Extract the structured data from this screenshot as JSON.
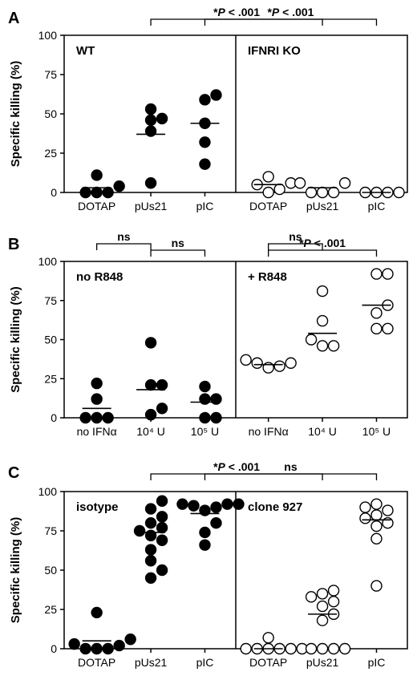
{
  "chart_data": [
    {
      "panel": "A",
      "type": "scatter",
      "ylabel": "Specific killing (%)",
      "ylim": [
        0,
        100
      ],
      "yticks": [
        "0",
        "25",
        "50",
        "75",
        "100"
      ],
      "groups": [
        {
          "name": "WT",
          "filled": true
        },
        {
          "name": "IFNRI KO",
          "filled": false
        }
      ],
      "categories": [
        {
          "label": "DOTAP",
          "group": 0,
          "mean": 3,
          "points": [
            0,
            0,
            0,
            4,
            11
          ]
        },
        {
          "label": "pUs21",
          "group": 0,
          "mean": 37,
          "points": [
            6,
            39,
            46,
            47,
            53
          ]
        },
        {
          "label": "pIC",
          "group": 0,
          "mean": 44,
          "points": [
            18,
            32,
            44,
            59,
            62
          ]
        },
        {
          "label": "DOTAP",
          "group": 1,
          "mean": 5,
          "points": [
            0,
            2,
            5,
            6,
            10
          ]
        },
        {
          "label": "pUs21",
          "group": 1,
          "mean": 3,
          "points": [
            0,
            0,
            0,
            6,
            6
          ]
        },
        {
          "label": "pIC",
          "group": 1,
          "mean": 0,
          "points": [
            0,
            0,
            0,
            0
          ]
        }
      ],
      "annotations": [
        {
          "text": "*P < .001",
          "from": 1,
          "to": 4
        },
        {
          "text": "*P < .001",
          "from": 2,
          "to": 5
        }
      ]
    },
    {
      "panel": "B",
      "type": "scatter",
      "ylabel": "Specific killing (%)",
      "ylim": [
        0,
        100
      ],
      "yticks": [
        "0",
        "25",
        "50",
        "75",
        "100"
      ],
      "groups": [
        {
          "name": "no R848",
          "filled": true
        },
        {
          "name": "+ R848",
          "filled": false
        }
      ],
      "categories": [
        {
          "label": "no IFNα",
          "group": 0,
          "mean": 6,
          "points": [
            0,
            0,
            0,
            12,
            22
          ]
        },
        {
          "label": "10⁴ U",
          "group": 0,
          "mean": 18,
          "points": [
            2,
            6,
            21,
            21,
            48
          ]
        },
        {
          "label": "10⁵ U",
          "group": 0,
          "mean": 10,
          "points": [
            0,
            0,
            12,
            12,
            20
          ]
        },
        {
          "label": "no IFNα",
          "group": 1,
          "mean": 34,
          "points": [
            32,
            33,
            35,
            35,
            37
          ]
        },
        {
          "label": "10⁴ U",
          "group": 1,
          "mean": 54,
          "points": [
            46,
            46,
            50,
            62,
            81
          ]
        },
        {
          "label": "10⁵ U",
          "group": 1,
          "mean": 72,
          "points": [
            57,
            57,
            67,
            72,
            92,
            92
          ]
        }
      ],
      "annotations": [
        {
          "text": "ns",
          "from": 0,
          "to": 1,
          "level": 0
        },
        {
          "text": "ns",
          "from": 1,
          "to": 2,
          "level": 1
        },
        {
          "text": "ns",
          "from": 3,
          "to": 4,
          "level": 0
        },
        {
          "text": "*P < .001",
          "from": 3,
          "to": 5,
          "level": 1
        }
      ]
    },
    {
      "panel": "C",
      "type": "scatter",
      "ylabel": "Specific killing (%)",
      "ylim": [
        0,
        100
      ],
      "yticks": [
        "0",
        "25",
        "50",
        "75",
        "100"
      ],
      "groups": [
        {
          "name": "isotype",
          "filled": true
        },
        {
          "name": "clone 927",
          "filled": false
        }
      ],
      "categories": [
        {
          "label": "DOTAP",
          "group": 0,
          "mean": 5,
          "points": [
            0,
            0,
            0,
            2,
            3,
            6,
            23
          ]
        },
        {
          "label": "pUs21",
          "group": 0,
          "mean": 74,
          "points": [
            45,
            50,
            56,
            63,
            69,
            72,
            75,
            77,
            80,
            84,
            89,
            94
          ]
        },
        {
          "label": "pIC",
          "group": 0,
          "mean": 86,
          "points": [
            66,
            74,
            80,
            88,
            90,
            91,
            92,
            92,
            92
          ]
        },
        {
          "label": "DOTAP",
          "group": 1,
          "mean": 0,
          "points": [
            0,
            0,
            0,
            0,
            0,
            0,
            7
          ]
        },
        {
          "label": "pUs21",
          "group": 1,
          "mean": 22,
          "points": [
            0,
            0,
            0,
            0,
            18,
            22,
            27,
            30,
            33,
            35,
            37
          ]
        },
        {
          "label": "pIC",
          "group": 1,
          "mean": 82,
          "points": [
            40,
            70,
            78,
            80,
            83,
            85,
            88,
            90,
            92
          ]
        }
      ],
      "annotations": [
        {
          "text": "*P < .001",
          "from": 1,
          "to": 4
        },
        {
          "text": "ns",
          "from": 2,
          "to": 5
        }
      ]
    }
  ]
}
